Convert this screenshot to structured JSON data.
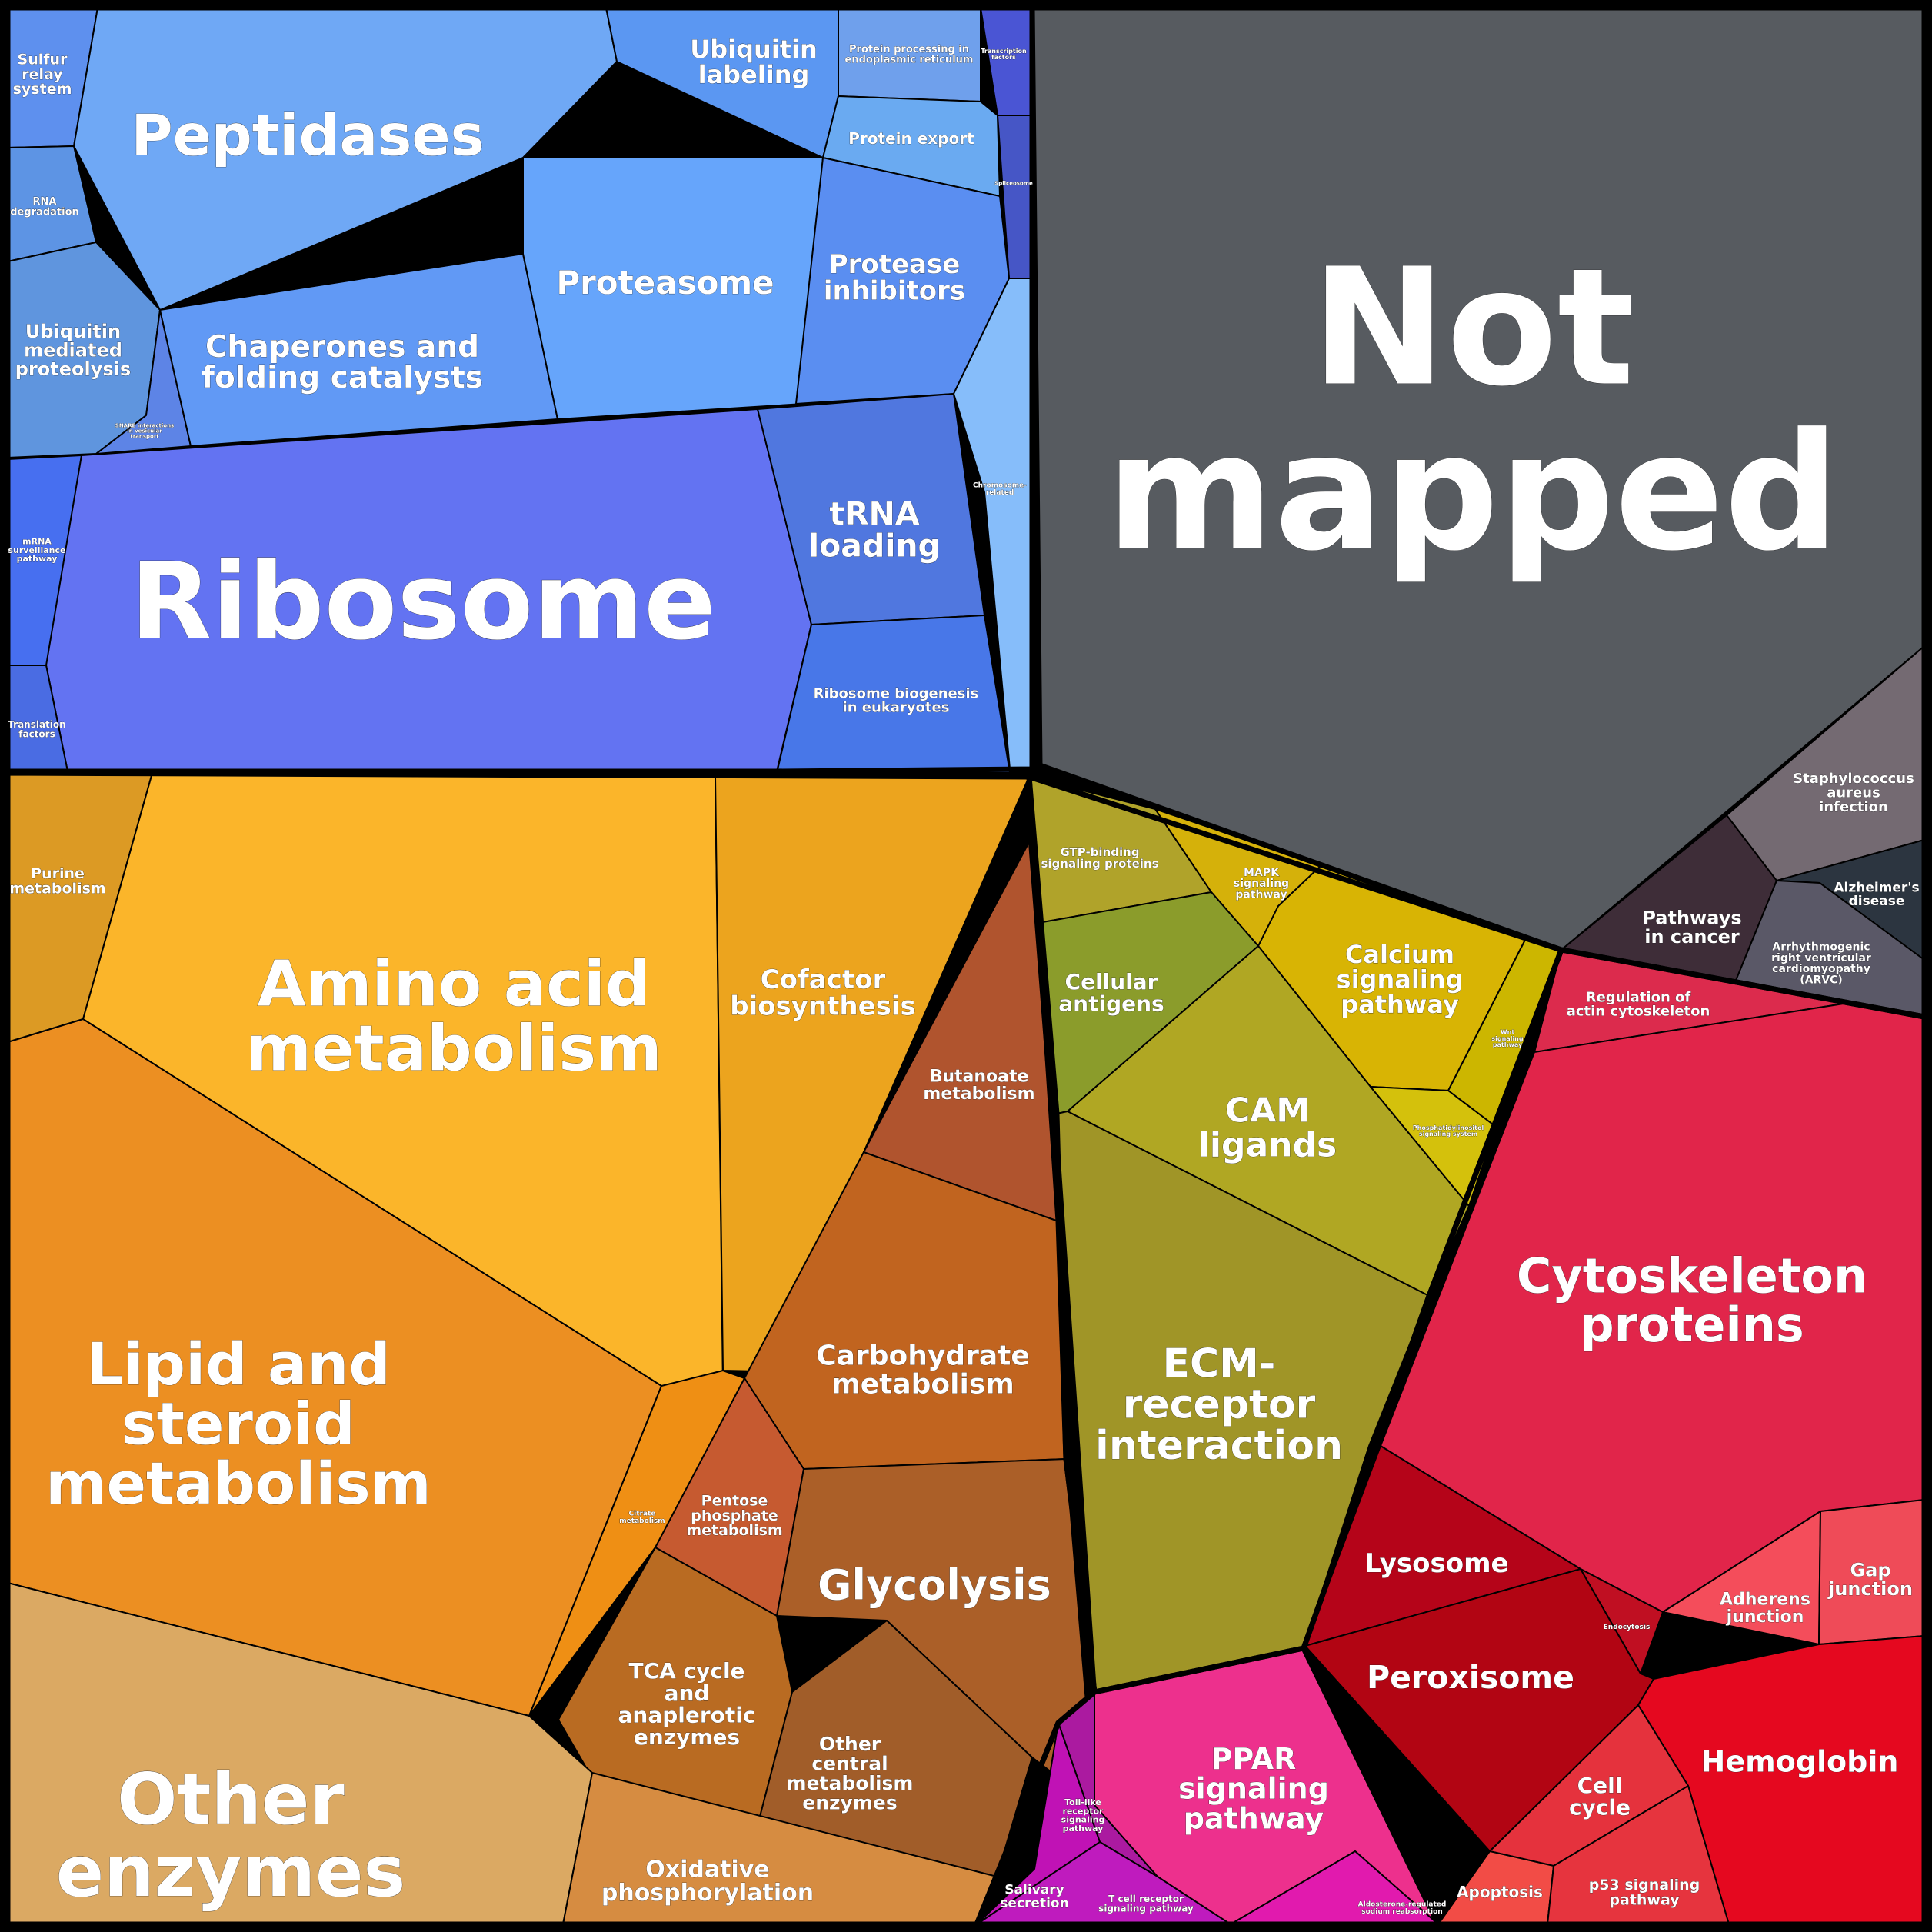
{
  "colors": {
    "not_mapped": "#575b60",
    "ribosome": "#6373f2",
    "amino_acid": "#fbb52a",
    "lipid": "#ec8f22",
    "cytoskeleton": "#e1254a",
    "ecm": "#a09527",
    "hemoglobin": "#e5081f",
    "peptidases": "#6fa8f5"
  },
  "cells": [
    {
      "label": [
        "Sulfur",
        "relay",
        "system"
      ],
      "color": "#5e90ee"
    },
    {
      "label": [
        "Peptidases"
      ],
      "color": "#6fa8f5"
    },
    {
      "label": [
        "Ubiquitin",
        "labeling"
      ],
      "color": "#5b97f2"
    },
    {
      "label": [
        "Protein processing in",
        "endoplasmic reticulum"
      ],
      "color": "#6fa0ec"
    },
    {
      "label": [
        "Transcription",
        "factors"
      ],
      "color": "#4a55d4"
    },
    {
      "label": [
        "Protein export"
      ],
      "color": "#6aaaf1"
    },
    {
      "label": [
        "Spliceosome"
      ],
      "color": "#4656c6"
    },
    {
      "label": [
        "RNA",
        "degradation"
      ],
      "color": "#5d94e4"
    },
    {
      "label": [
        "Ubiquitin",
        "mediated",
        "proteolysis"
      ],
      "color": "#5f95de"
    },
    {
      "label": [
        "SNARE interactions",
        "in vesicular",
        "transport"
      ],
      "color": "#5d84e6"
    },
    {
      "label": [
        "Chaperones and",
        "folding catalysts"
      ],
      "color": "#6199f5"
    },
    {
      "label": [
        "Proteasome"
      ],
      "color": "#66a5fb"
    },
    {
      "label": [
        "Protease",
        "inhibitors"
      ],
      "color": "#5a8ef1"
    },
    {
      "label": [
        "Chromosome-",
        "related"
      ],
      "color": "#86bdfa"
    },
    {
      "label": [
        "mRNA",
        "surveillance",
        "pathway"
      ],
      "color": "#476ff0"
    },
    {
      "label": [
        "Ribosome"
      ],
      "color": "#6373f2"
    },
    {
      "label": [
        "tRNA",
        "loading"
      ],
      "color": "#5077df"
    },
    {
      "label": [
        "Translation",
        "factors"
      ],
      "color": "#4a6ce3"
    },
    {
      "label": [
        "Ribosome biogenesis",
        "in eukaryotes"
      ],
      "color": "#4877e8"
    },
    {
      "label": [
        "Not",
        "mapped"
      ],
      "color": "#575b60"
    },
    {
      "label": [
        "Staphylococcus",
        "aureus",
        "infection"
      ],
      "color": "#746a72"
    },
    {
      "label": [
        "Pathways",
        "in cancer"
      ],
      "color": "#3e2d38"
    },
    {
      "label": [
        "Alzheimer's",
        "disease"
      ],
      "color": "#2c3540"
    },
    {
      "label": [
        "Arrhythmogenic",
        "right ventricular",
        "cardiomyopathy",
        "(ARVC)"
      ],
      "color": "#5a5867"
    },
    {
      "label": [
        "Purine",
        "metabolism"
      ],
      "color": "#dc9a24"
    },
    {
      "label": [
        "Amino acid",
        "metabolism"
      ],
      "color": "#fbb52a"
    },
    {
      "label": [
        "Cofactor",
        "biosynthesis"
      ],
      "color": "#eca41e"
    },
    {
      "label": [
        "Lipid and",
        "steroid",
        "metabolism"
      ],
      "color": "#ec8f22"
    },
    {
      "label": [
        "Citrate",
        "metabolism"
      ],
      "color": "#ef8f14"
    },
    {
      "label": [
        "Butanoate",
        "metabolism"
      ],
      "color": "#b0542e"
    },
    {
      "label": [
        "Carbohydrate",
        "metabolism"
      ],
      "color": "#c1641f"
    },
    {
      "label": [
        "Pentose",
        "phosphate",
        "metabolism"
      ],
      "color": "#c65a30"
    },
    {
      "label": [
        "Glycolysis"
      ],
      "color": "#ab5f28"
    },
    {
      "label": [
        "TCA cycle",
        "and",
        "anaplerotic",
        "enzymes"
      ],
      "color": "#b96b22"
    },
    {
      "label": [
        "Other",
        "central",
        "metabolism",
        "enzymes"
      ],
      "color": "#a15d29"
    },
    {
      "label": [
        "Other",
        "enzymes"
      ],
      "color": "#dba963"
    },
    {
      "label": [
        "Oxidative",
        "phosphorylation"
      ],
      "color": "#d68c41"
    },
    {
      "label": [
        "GTP-binding",
        "signaling proteins"
      ],
      "color": "#b0a32a"
    },
    {
      "label": [
        "MAPK",
        "signaling",
        "pathway"
      ],
      "color": "#d5b10a"
    },
    {
      "label": [
        "Cellular",
        "antigens"
      ],
      "color": "#8b9c2b"
    },
    {
      "label": [
        "Calcium",
        "signaling",
        "pathway"
      ],
      "color": "#d8b404"
    },
    {
      "label": [
        "Wnt",
        "signaling",
        "pathway"
      ],
      "color": "#ccb600"
    },
    {
      "label": [
        "CAM",
        "ligands"
      ],
      "color": "#b0a723"
    },
    {
      "label": [
        "Phosphatidylinositol",
        "signaling system"
      ],
      "color": "#d4c10c"
    },
    {
      "label": [
        "ECM-",
        "receptor",
        "interaction"
      ],
      "color": "#a09527"
    },
    {
      "label": [
        "Regulation of",
        "actin cytoskeleton"
      ],
      "color": "#dc2b4d"
    },
    {
      "label": [
        "Cytoskeleton",
        "proteins"
      ],
      "color": "#e1254a"
    },
    {
      "label": [
        "Lysosome"
      ],
      "color": "#b50419"
    },
    {
      "label": [
        "Endocytosis"
      ],
      "color": "#c00f22"
    },
    {
      "label": [
        "Adherens",
        "junction"
      ],
      "color": "#f44d5b"
    },
    {
      "label": [
        "Gap",
        "junction"
      ],
      "color": "#ef4b58"
    },
    {
      "label": [
        "Peroxisome"
      ],
      "color": "#b20513"
    },
    {
      "label": [
        "Hemoglobin"
      ],
      "color": "#e5081f"
    },
    {
      "label": [
        "Cell",
        "cycle"
      ],
      "color": "#e5323d"
    },
    {
      "label": [
        "Apoptosis"
      ],
      "color": "#f24c46"
    },
    {
      "label": [
        "p53 signaling",
        "pathway"
      ],
      "color": "#e6343e"
    },
    {
      "label": [
        "PPAR",
        "signaling",
        "pathway"
      ],
      "color": "#ed308d"
    },
    {
      "label": [
        "Toll-like",
        "receptor",
        "signaling",
        "pathway"
      ],
      "color": "#ab1aa0"
    },
    {
      "label": [
        "Salivary",
        "secretion"
      ],
      "color": "#c012b5"
    },
    {
      "label": [
        "T cell receptor",
        "signaling pathway"
      ],
      "color": "#bf1bbe"
    },
    {
      "label": [
        "Aldosterone-regulated",
        "sodium reabsorption"
      ],
      "color": "#e11aae"
    }
  ]
}
